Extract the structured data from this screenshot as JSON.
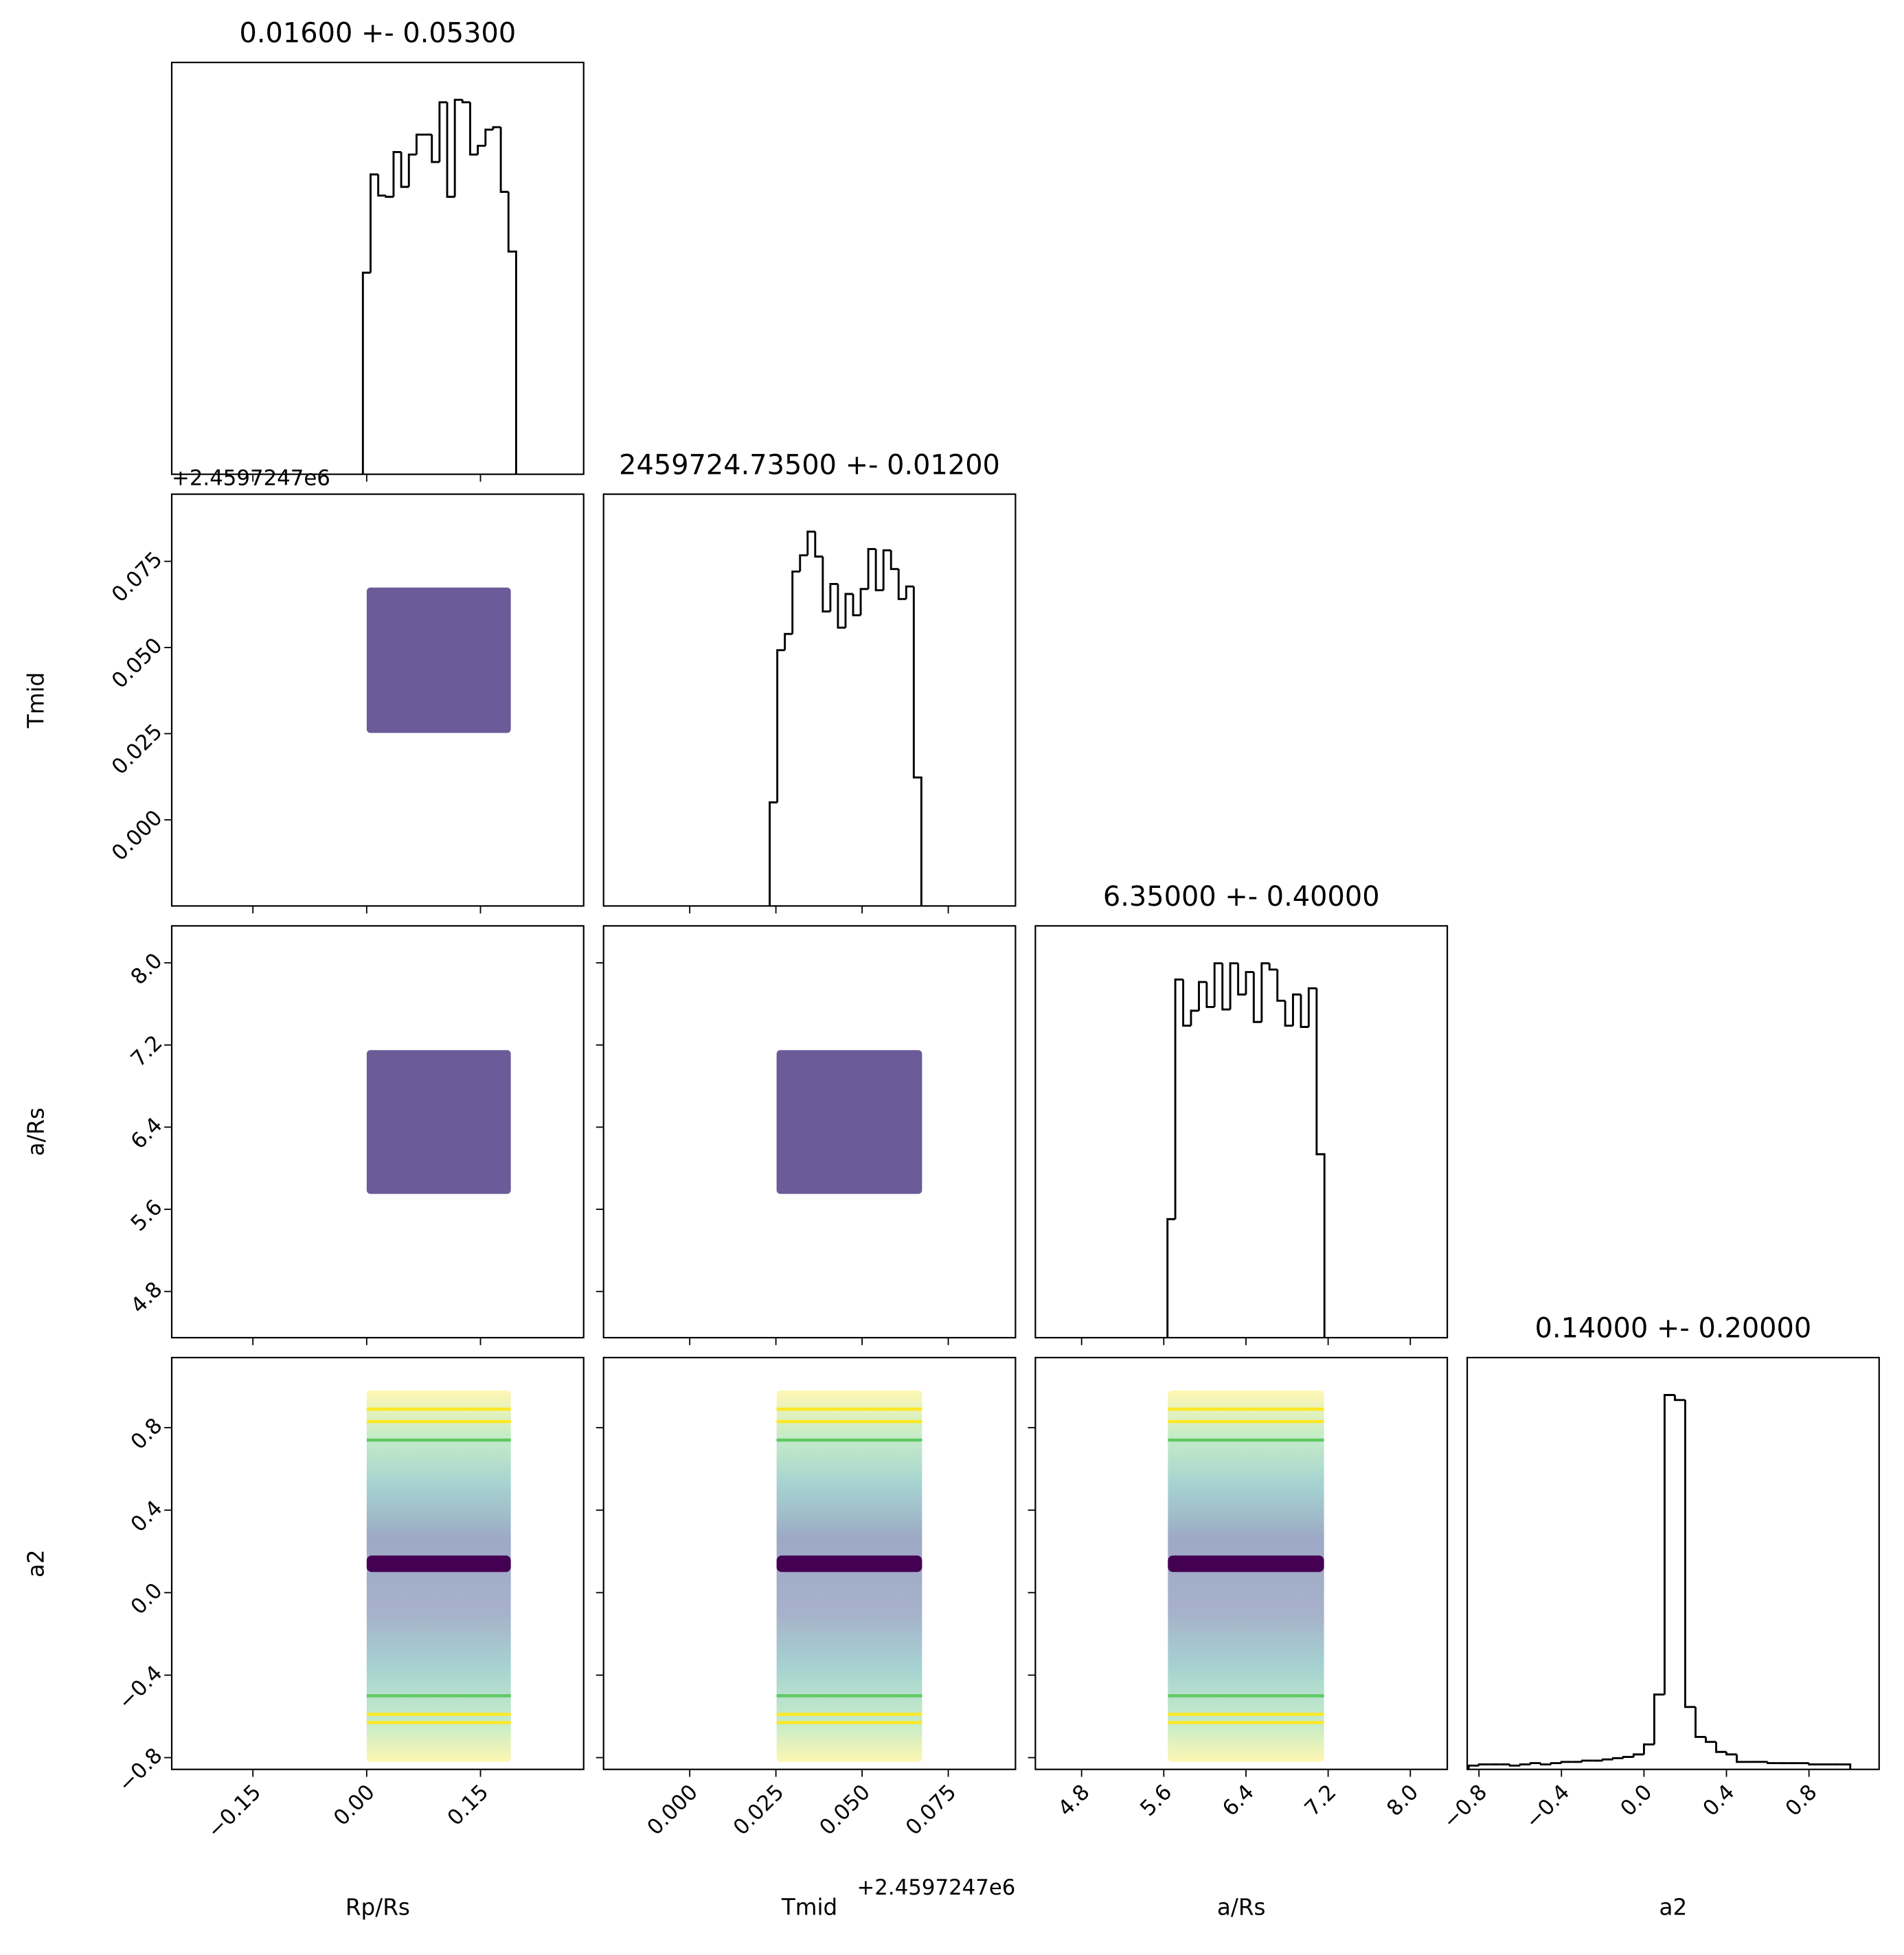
{
  "chart_data": {
    "type": "corner",
    "offset_label": "+2.4597247e6",
    "hist_color": "#000000",
    "cloud_color": "#46327e",
    "band_color": "#440154",
    "parameters": [
      {
        "label": "Rp/Rs",
        "title": "0.01600 +- 0.05300",
        "lim": [
          -0.257,
          0.286
        ],
        "ticks": [
          {
            "value": -0.15,
            "label": "−0.15"
          },
          {
            "value": 0,
            "label": "0.00"
          },
          0.15
        ],
        "bins": [
          -0.005,
          0.0051,
          0.0152,
          0.0253,
          0.0354,
          0.0455,
          0.0556,
          0.0657,
          0.0758,
          0.0859,
          0.096,
          0.1061,
          0.1162,
          0.1263,
          0.1364,
          0.1465,
          0.1566,
          0.1667,
          0.1768,
          0.1869,
          0.197
        ],
        "counts": [
          162,
          241,
          224,
          223,
          259,
          231,
          257,
          273,
          273,
          251,
          299,
          223,
          301,
          299,
          257,
          264,
          277,
          279,
          227,
          179
        ],
        "count_lim": [
          0,
          331
        ]
      },
      {
        "label": "Tmid",
        "title": "2459724.73500 +- 0.01200",
        "lim": [
          -0.025,
          0.0945
        ],
        "ticks": [
          {
            "value": 0,
            "label": "0.000"
          },
          0.025,
          {
            "value": 0.05,
            "label": "0.050"
          },
          0.075
        ],
        "bins": [
          0.0232,
          0.0254,
          0.0276,
          0.0298,
          0.032,
          0.0342,
          0.0364,
          0.0386,
          0.0408,
          0.043,
          0.0452,
          0.0474,
          0.0496,
          0.0518,
          0.054,
          0.0562,
          0.0584,
          0.0606,
          0.0628,
          0.065,
          0.0672
        ],
        "counts": [
          83,
          205,
          218,
          268,
          281,
          300,
          280,
          236,
          258,
          223,
          250,
          233,
          254,
          286,
          253,
          285,
          270,
          246,
          256,
          103
        ],
        "count_lim": [
          0,
          330
        ]
      },
      {
        "label": "a/Rs",
        "title": "6.35000 +- 0.40000",
        "lim": [
          4.35,
          8.36
        ],
        "ticks": [
          4.8,
          5.6,
          6.4,
          7.2,
          {
            "value": 8,
            "label": "8.0"
          }
        ],
        "bins": [
          5.636,
          5.712,
          5.789,
          5.865,
          5.942,
          6.018,
          6.094,
          6.171,
          6.247,
          6.324,
          6.4,
          6.476,
          6.553,
          6.629,
          6.706,
          6.782,
          6.858,
          6.935,
          7.011,
          7.088,
          7.164
        ],
        "counts": [
          95,
          287,
          250,
          262,
          285,
          265,
          300,
          263,
          300,
          275,
          293,
          253,
          300,
          295,
          270,
          250,
          275,
          249,
          280,
          147
        ],
        "count_lim": [
          0,
          330
        ]
      },
      {
        "label": "a2",
        "title": "0.14000 +- 0.20000",
        "lim": [
          -0.857,
          1.14
        ],
        "ticks": [
          {
            "value": -0.8,
            "label": "−0.8"
          },
          {
            "value": -0.4,
            "label": "−0.4"
          },
          {
            "value": 0,
            "label": "0.0"
          },
          0.4,
          0.8
        ],
        "bins": [
          -0.85,
          -0.8,
          -0.75,
          -0.7,
          -0.65,
          -0.6,
          -0.55,
          -0.5,
          -0.45,
          -0.4,
          -0.35,
          -0.3,
          -0.25,
          -0.2,
          -0.15,
          -0.1,
          -0.05,
          0,
          0.05,
          0.1,
          0.15,
          0.2,
          0.25,
          0.3,
          0.35,
          0.4,
          0.45,
          0.5,
          0.55,
          0.6,
          0.65,
          0.7,
          0.75,
          0.8,
          0.85,
          0.9,
          0.95,
          1.0
        ],
        "counts": [
          3,
          4,
          4,
          4,
          3,
          4,
          5,
          4,
          5,
          6,
          6,
          7,
          7,
          8,
          9,
          10,
          12,
          20,
          60,
          300,
          296,
          50,
          26,
          22,
          14,
          12,
          6,
          6,
          6,
          5,
          5,
          5,
          5,
          4,
          4,
          4,
          4
        ],
        "count_lim": [
          0,
          330
        ]
      }
    ],
    "scatter": [
      {
        "x_range": [
          0,
          0.19
        ],
        "y_range": [
          0.0252,
          0.0674
        ]
      },
      {
        "x_range": [
          0,
          0.19
        ],
        "y_range": [
          5.75,
          7.15
        ]
      },
      {
        "x_range": [
          0.0252,
          0.0674
        ],
        "y_range": [
          5.75,
          7.15
        ]
      },
      {
        "x_range": [
          0,
          0.19
        ],
        "y_range": [
          -0.82,
          0.98
        ],
        "band": [
          0.1,
          0.18
        ],
        "contours": [
          {
            "color": "#fde725",
            "value": 0.89
          },
          {
            "color": "#fde725",
            "value": 0.83
          },
          {
            "color": "#5ec962",
            "value": 0.74
          },
          {
            "color": "#5ec962",
            "value": -0.5
          },
          {
            "color": "#fde725",
            "value": -0.59
          },
          {
            "color": "#fde725",
            "value": -0.63
          }
        ]
      },
      {
        "x_range": [
          0.0252,
          0.0674
        ],
        "y_range": [
          -0.82,
          0.98
        ],
        "band": [
          0.1,
          0.18
        ],
        "contours": [
          {
            "color": "#fde725",
            "value": 0.89
          },
          {
            "color": "#fde725",
            "value": 0.83
          },
          {
            "color": "#5ec962",
            "value": 0.74
          },
          {
            "color": "#5ec962",
            "value": -0.5
          },
          {
            "color": "#fde725",
            "value": -0.59
          },
          {
            "color": "#fde725",
            "value": -0.63
          }
        ]
      },
      {
        "x_range": [
          5.64,
          7.16
        ],
        "y_range": [
          -0.82,
          0.98
        ],
        "band": [
          0.1,
          0.18
        ],
        "contours": [
          {
            "color": "#fde725",
            "value": 0.89
          },
          {
            "color": "#fde725",
            "value": 0.83
          },
          {
            "color": "#5ec962",
            "value": 0.74
          },
          {
            "color": "#5ec962",
            "value": -0.5
          },
          {
            "color": "#fde725",
            "value": -0.59
          },
          {
            "color": "#fde725",
            "value": -0.63
          }
        ]
      }
    ]
  }
}
